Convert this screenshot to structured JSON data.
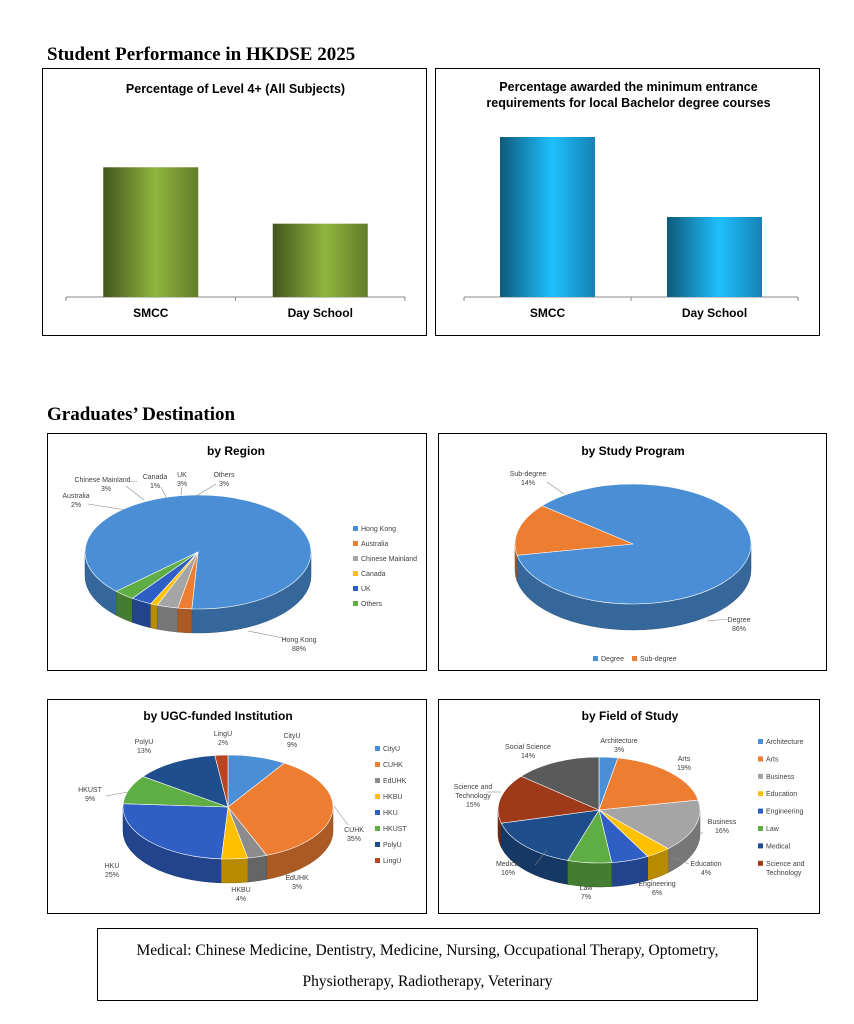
{
  "headings": {
    "performance": "Student Performance in HKDSE 2025",
    "destination": "Graduates’ Destination"
  },
  "note": {
    "line1": "Medical: Chinese Medicine, Dentistry, Medicine, Nursing, Occupational Therapy, Optometry,",
    "line2": "Physiotherapy, Radiotherapy, Veterinary"
  },
  "chart_data": [
    {
      "id": "level4",
      "type": "bar",
      "title": "Percentage of Level 4+ (All Subjects)",
      "categories": [
        "SMCC",
        "Day School"
      ],
      "values": [
        69,
        39
      ],
      "ylim": [
        0,
        100
      ],
      "grid": false,
      "color": "#7a9a34"
    },
    {
      "id": "bachelor",
      "type": "bar",
      "title": "Percentage awarded the minimum entrance requirements for local Bachelor degree courses",
      "title_lines": [
        "Percentage awarded the minimum entrance",
        "requirements for local Bachelor degree courses"
      ],
      "categories": [
        "SMCC",
        "Day School"
      ],
      "values": [
        80,
        40
      ],
      "ylim": [
        0,
        94
      ],
      "grid": false,
      "color": "#1aa3e0"
    },
    {
      "id": "region",
      "type": "pie",
      "title": "by Region",
      "legend": "right",
      "slices": [
        {
          "label": "Hong Kong",
          "value": 88,
          "text": "88%",
          "color": "#4a8fd6"
        },
        {
          "label": "Australia",
          "value": 2,
          "text": "2%",
          "color": "#ed7d31"
        },
        {
          "label": "Chinese Mainland",
          "value": 3,
          "text": "3%",
          "color": "#a5a5a5"
        },
        {
          "label": "Canada",
          "value": 1,
          "text": "1%",
          "color": "#ffc000"
        },
        {
          "label": "UK",
          "value": 3,
          "text": "3%",
          "color": "#2f5fc4"
        },
        {
          "label": "Others",
          "value": 3,
          "text": "3%",
          "color": "#5fae45"
        }
      ],
      "callout_labels": [
        "Hong Kong",
        "Australia",
        "Chinese Mainland…",
        "Canada",
        "UK",
        "Others"
      ]
    },
    {
      "id": "program",
      "type": "pie",
      "title": "by Study Program",
      "legend": "bottom",
      "slices": [
        {
          "label": "Degree",
          "value": 86,
          "text": "86%",
          "color": "#4a8fd6"
        },
        {
          "label": "Sub-degree",
          "value": 14,
          "text": "14%",
          "color": "#ed7d31"
        }
      ]
    },
    {
      "id": "institution",
      "type": "pie",
      "title": "by UGC-funded  Institution",
      "legend": "right",
      "slices": [
        {
          "label": "CityU",
          "value": 9,
          "text": "9%",
          "color": "#4a8fd6"
        },
        {
          "label": "CUHK",
          "value": 35,
          "text": "35%",
          "color": "#ed7d31"
        },
        {
          "label": "EdUHK",
          "value": 3,
          "text": "3%",
          "color": "#8c8c8c"
        },
        {
          "label": "HKBU",
          "value": 4,
          "text": "4%",
          "color": "#ffc000"
        },
        {
          "label": "HKU",
          "value": 25,
          "text": "25%",
          "color": "#2f5fc4"
        },
        {
          "label": "HKUST",
          "value": 9,
          "text": "9%",
          "color": "#5fae45"
        },
        {
          "label": "PolyU",
          "value": 13,
          "text": "13%",
          "color": "#1f4e8c"
        },
        {
          "label": "LingU",
          "value": 2,
          "text": "2%",
          "color": "#b8451f"
        }
      ]
    },
    {
      "id": "field",
      "type": "pie",
      "title": "by Field of Study",
      "legend": "right",
      "slices": [
        {
          "label": "Architecture",
          "value": 3,
          "text": "3%",
          "color": "#4a8fd6"
        },
        {
          "label": "Arts",
          "value": 19,
          "text": "19%",
          "color": "#ed7d31"
        },
        {
          "label": "Business",
          "value": 16,
          "text": "16%",
          "color": "#a5a5a5"
        },
        {
          "label": "Education",
          "value": 4,
          "text": "4%",
          "color": "#ffc000"
        },
        {
          "label": "Engineering",
          "value": 6,
          "text": "6%",
          "color": "#2f5fc4"
        },
        {
          "label": "Law",
          "value": 7,
          "text": "7%",
          "color": "#5fae45"
        },
        {
          "label": "Medical",
          "value": 16,
          "text": "16%",
          "color": "#1f4e8c"
        },
        {
          "label": "Science and Technology",
          "value": 15,
          "text": "15%",
          "color": "#9e3a1a"
        },
        {
          "label": "Social Science",
          "value": 14,
          "text": "14%",
          "color": "#5a5a5a"
        }
      ],
      "legend_items": [
        "Architecture",
        "Arts",
        "Business",
        "Education",
        "Engineering",
        "Law",
        "Medical",
        "Science and Technology"
      ]
    }
  ]
}
